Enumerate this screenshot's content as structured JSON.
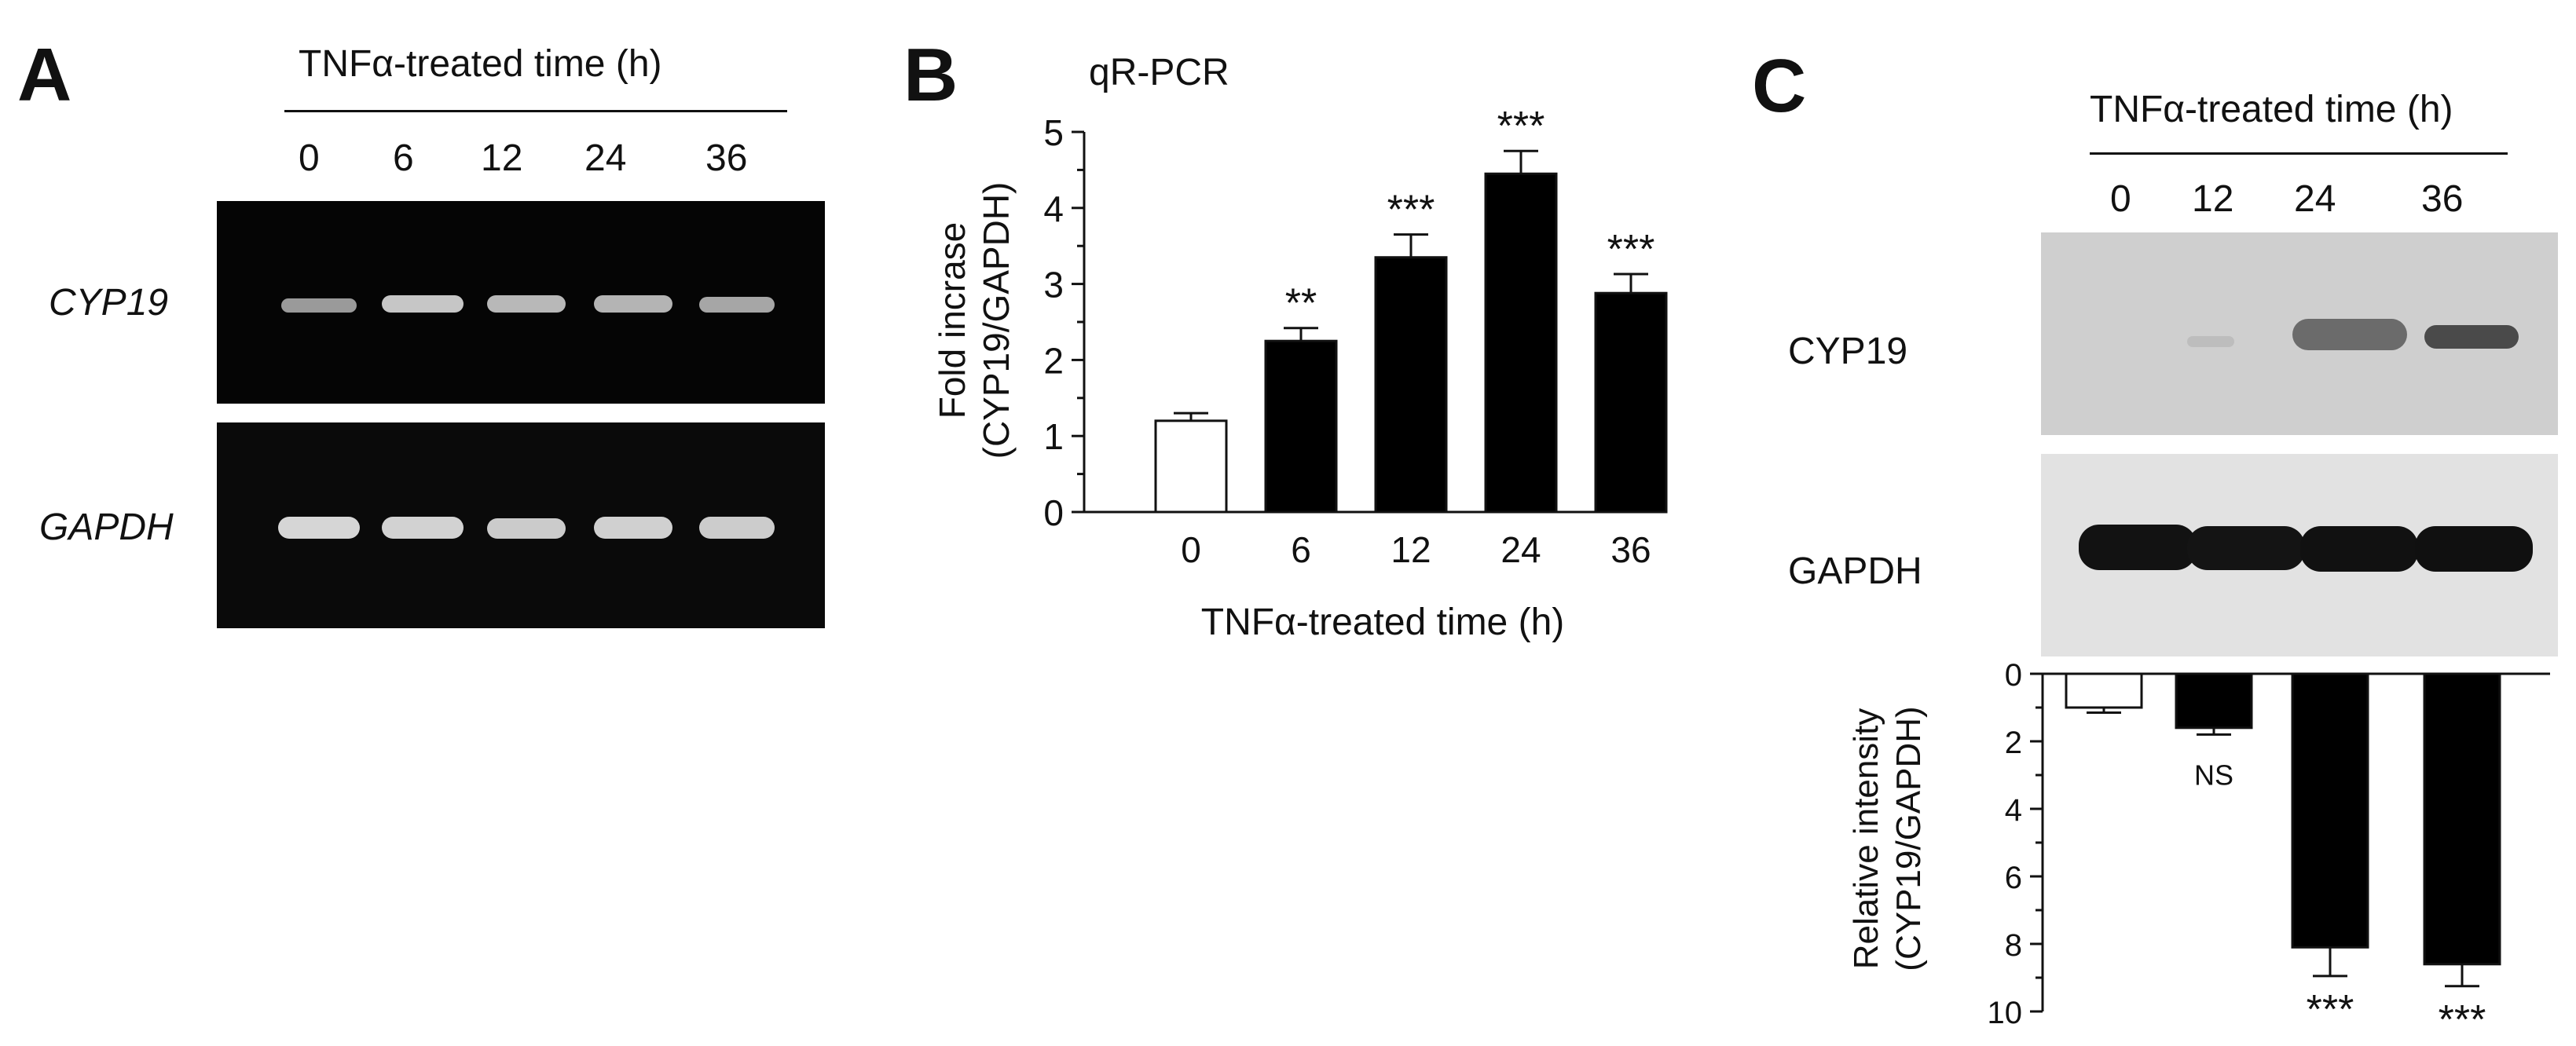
{
  "panel_a": {
    "letter": "A",
    "header": "TNFα-treated time (h)",
    "lanes": [
      "0",
      "6",
      "12",
      "24",
      "36"
    ],
    "genes": [
      "CYP19",
      "GAPDH"
    ]
  },
  "panel_c": {
    "letter": "C",
    "header": "TNFα-treated time (h)",
    "lanes": [
      "0",
      "12",
      "24",
      "36"
    ],
    "proteins": [
      "CYP19",
      "GAPDH"
    ]
  },
  "chart_data": [
    {
      "panel": "B",
      "type": "bar",
      "title": "qR-PCR",
      "categories": [
        "0",
        "6",
        "12",
        "24",
        "36"
      ],
      "values": [
        1.2,
        2.25,
        3.35,
        4.45,
        2.88
      ],
      "errors": [
        0.1,
        0.17,
        0.3,
        0.3,
        0.25
      ],
      "significance": [
        "",
        "**",
        "***",
        "***",
        "***"
      ],
      "bar_fill": [
        "#ffffff",
        "#000000",
        "#000000",
        "#000000",
        "#000000"
      ],
      "xlabel": "TNFα-treated time (h)",
      "ylabel_lines": [
        "Fold incrase",
        "(CYP19/GAPDH)"
      ],
      "ylim": [
        0,
        5
      ],
      "yticks": [
        0,
        1,
        2,
        3,
        4,
        5
      ]
    },
    {
      "panel": "C",
      "type": "bar",
      "orientation": "inverted",
      "categories": [
        "0",
        "12",
        "24",
        "36"
      ],
      "values": [
        1.0,
        1.6,
        8.1,
        8.6
      ],
      "errors": [
        0.15,
        0.2,
        0.85,
        0.65
      ],
      "significance": [
        "",
        "NS",
        "***",
        "***"
      ],
      "bar_fill": [
        "#ffffff",
        "#000000",
        "#000000",
        "#000000"
      ],
      "ylabel_lines": [
        "Relative intensity",
        "(CYP19/GAPDH)"
      ],
      "ylim": [
        0,
        10
      ],
      "yticks": [
        0,
        2,
        4,
        6,
        8,
        10
      ]
    }
  ]
}
